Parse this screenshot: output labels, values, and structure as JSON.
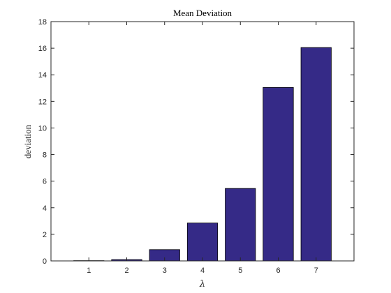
{
  "chart_data": {
    "type": "bar",
    "title": "Mean Deviation",
    "xlabel": "λ",
    "ylabel": "deviation",
    "categories": [
      "1",
      "2",
      "3",
      "4",
      "5",
      "6",
      "7"
    ],
    "values": [
      0.02,
      0.1,
      0.85,
      2.85,
      5.45,
      13.05,
      16.05
    ],
    "xlim": [
      0,
      8
    ],
    "ylim": [
      0,
      18
    ],
    "yticks": [
      0,
      2,
      4,
      6,
      8,
      10,
      12,
      14,
      16,
      18
    ],
    "grid": false,
    "legend": "none",
    "bar_color": "#352a87",
    "bar_edge_color": "#000000"
  }
}
